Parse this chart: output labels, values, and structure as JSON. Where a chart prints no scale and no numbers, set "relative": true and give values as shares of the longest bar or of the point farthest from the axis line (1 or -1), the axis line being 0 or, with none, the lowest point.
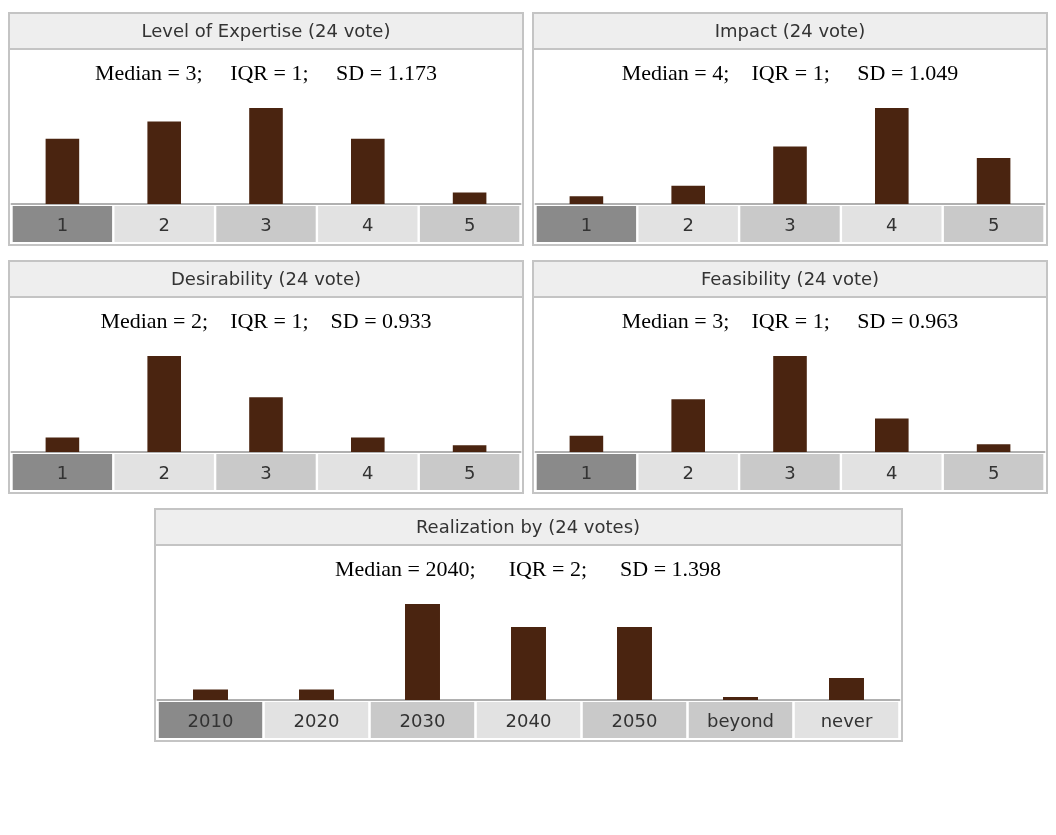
{
  "chart_data": [
    {
      "type": "bar",
      "title": "Level of Expertise (24 vote)",
      "subtitle": "Median = 3;     IQR = 1;     SD = 1.173",
      "categories": [
        "1",
        "2",
        "3",
        "4",
        "5"
      ],
      "values": [
        0.68,
        0.86,
        1,
        0.68,
        0.12
      ],
      "color": "#4a2410",
      "relative": true
    },
    {
      "type": "bar",
      "title": "Impact (24 vote)",
      "subtitle": "Median = 4;    IQR = 1;     SD = 1.049",
      "categories": [
        "1",
        "2",
        "3",
        "4",
        "5"
      ],
      "values": [
        0.08,
        0.19,
        0.6,
        1,
        0.48
      ],
      "color": "#4a2410",
      "relative": true
    },
    {
      "type": "bar",
      "title": "Desirability (24 vote)",
      "subtitle": "Median = 2;    IQR = 1;    SD = 0.933",
      "categories": [
        "1",
        "2",
        "3",
        "4",
        "5"
      ],
      "values": [
        0.15,
        1,
        0.57,
        0.15,
        0.07
      ],
      "color": "#4a2410",
      "relative": true
    },
    {
      "type": "bar",
      "title": "Feasibility (24 vote)",
      "subtitle": "Median = 3;    IQR = 1;     SD = 0.963",
      "categories": [
        "1",
        "2",
        "3",
        "4",
        "5"
      ],
      "values": [
        0.17,
        0.55,
        1,
        0.35,
        0.08
      ],
      "color": "#4a2410",
      "relative": true
    },
    {
      "type": "bar",
      "title": "Realization by (24 votes)",
      "subtitle": "Median = 2040;      IQR = 2;      SD = 1.398",
      "categories": [
        "2010",
        "2020",
        "2030",
        "2040",
        "2050",
        "beyond",
        "never"
      ],
      "values": [
        0.11,
        0.11,
        1,
        0.76,
        0.76,
        0.03,
        0.23
      ],
      "color": "#4a2410",
      "relative": true
    }
  ]
}
